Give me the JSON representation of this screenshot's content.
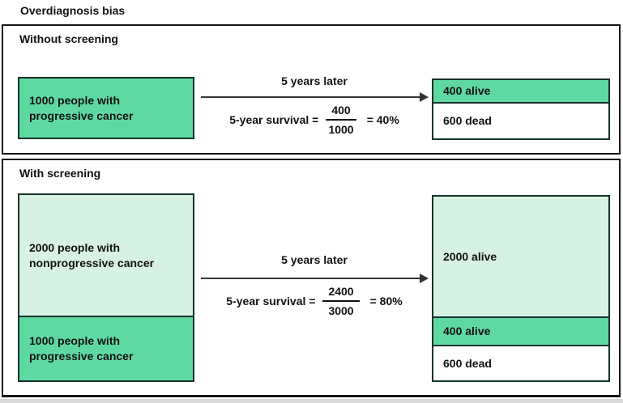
{
  "title": "Overdiagnosis bias",
  "colors": {
    "progressive": "#5fd9a2",
    "nonprogressive": "#d7f1e3",
    "dead": "#ffffff",
    "footer_strip": "#d9d9d9",
    "border": "#161616",
    "arrow": "#333333"
  },
  "panels": [
    {
      "label": "Without screening",
      "arrow_label": "5 years later",
      "formula": {
        "lhs": "5-year survival =",
        "numerator": "400",
        "denominator": "1000",
        "rhs": "= 40%"
      },
      "source_sections": [
        {
          "label": "1000 people with\nprogressive cancer",
          "status": "progressive"
        }
      ],
      "result_sections": [
        {
          "label": "400 alive",
          "status": "alive"
        },
        {
          "label": "600 dead",
          "status": "dead"
        }
      ]
    },
    {
      "label": "With screening",
      "arrow_label": "5 years later",
      "formula": {
        "lhs": "5-year survival =",
        "numerator": "2400",
        "denominator": "3000",
        "rhs": "= 80%"
      },
      "source_sections": [
        {
          "label": "2000 people with\nnonprogressive cancer",
          "status": "nonprogressive"
        },
        {
          "label": "1000 people with\nprogressive cancer",
          "status": "progressive"
        }
      ],
      "result_sections": [
        {
          "label": "2000 alive",
          "status": "alive-nonprogressive"
        },
        {
          "label": "400 alive",
          "status": "alive-progressive"
        },
        {
          "label": "600 dead",
          "status": "dead"
        }
      ]
    }
  ]
}
